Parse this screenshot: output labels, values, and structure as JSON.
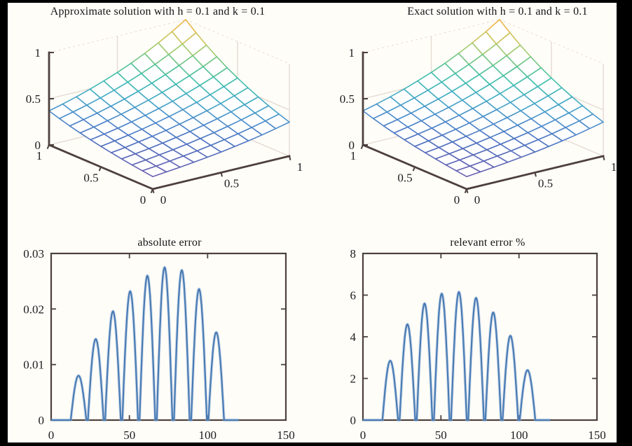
{
  "figure": {
    "background_color": "#fffdf8",
    "frame_color": "#4d403c",
    "box_light_color": "#e4dad2",
    "box_dash_color": "#eae0da",
    "text_color": "#1c1c1c",
    "accent_line_color": "#4a7cb5",
    "line_halo_color": "#9db9dc",
    "colormap": "parula",
    "colormap_stops": [
      "#6a5fb0",
      "#4f72c0",
      "#4e8ecc",
      "#46aac6",
      "#3fbfae",
      "#62c48e",
      "#a3ca6e",
      "#ddc055",
      "#f2ae3d"
    ]
  },
  "chart_data": [
    {
      "id": "approximate-solution-surface",
      "type": "surface",
      "title": "Approximate solution with h = 0.1 and k = 0.1",
      "x": [
        0,
        0.1,
        0.2,
        0.3,
        0.4,
        0.5,
        0.6,
        0.7,
        0.8,
        0.9,
        1
      ],
      "y": [
        0,
        0.1,
        0.2,
        0.3,
        0.4,
        0.5,
        0.6,
        0.7,
        0.8,
        0.9,
        1
      ],
      "z": [
        [
          0.135,
          0.15,
          0.165,
          0.183,
          0.202,
          0.223,
          0.247,
          0.273,
          0.301,
          0.333,
          0.368
        ],
        [
          0.15,
          0.165,
          0.183,
          0.202,
          0.223,
          0.247,
          0.273,
          0.301,
          0.333,
          0.368,
          0.407
        ],
        [
          0.165,
          0.183,
          0.202,
          0.223,
          0.247,
          0.273,
          0.301,
          0.333,
          0.368,
          0.407,
          0.449
        ],
        [
          0.183,
          0.202,
          0.223,
          0.247,
          0.273,
          0.301,
          0.333,
          0.368,
          0.407,
          0.449,
          0.497
        ],
        [
          0.202,
          0.223,
          0.247,
          0.273,
          0.301,
          0.333,
          0.368,
          0.407,
          0.449,
          0.497,
          0.549
        ],
        [
          0.223,
          0.247,
          0.273,
          0.301,
          0.333,
          0.368,
          0.407,
          0.449,
          0.497,
          0.549,
          0.607
        ],
        [
          0.247,
          0.273,
          0.301,
          0.333,
          0.368,
          0.407,
          0.449,
          0.497,
          0.549,
          0.607,
          0.67
        ],
        [
          0.273,
          0.301,
          0.333,
          0.368,
          0.407,
          0.449,
          0.497,
          0.549,
          0.607,
          0.67,
          0.741
        ],
        [
          0.301,
          0.333,
          0.368,
          0.407,
          0.449,
          0.497,
          0.549,
          0.607,
          0.67,
          0.741,
          0.819
        ],
        [
          0.333,
          0.368,
          0.407,
          0.449,
          0.497,
          0.549,
          0.607,
          0.67,
          0.741,
          0.819,
          0.905
        ],
        [
          0.368,
          0.407,
          0.449,
          0.497,
          0.549,
          0.607,
          0.67,
          0.741,
          0.819,
          0.905,
          1.0
        ]
      ],
      "xlim": [
        0,
        1
      ],
      "ylim": [
        0,
        1
      ],
      "zlim": [
        0,
        1
      ],
      "xticks": [
        0,
        0.5,
        1
      ],
      "yticks": [
        0,
        0.5,
        1
      ],
      "zticks": [
        0,
        0.5,
        1
      ],
      "xtick_labels": [
        "0",
        "0.5",
        "1"
      ],
      "ytick_labels": [
        "0",
        "0.5",
        "1"
      ],
      "ztick_labels": [
        "0",
        "0.5",
        "1"
      ]
    },
    {
      "id": "exact-solution-surface",
      "type": "surface",
      "title": "Exact solution with h = 0.1 and k = 0.1",
      "x": [
        0,
        0.1,
        0.2,
        0.3,
        0.4,
        0.5,
        0.6,
        0.7,
        0.8,
        0.9,
        1
      ],
      "y": [
        0,
        0.1,
        0.2,
        0.3,
        0.4,
        0.5,
        0.6,
        0.7,
        0.8,
        0.9,
        1
      ],
      "z": [
        [
          0.135,
          0.15,
          0.165,
          0.183,
          0.202,
          0.223,
          0.247,
          0.273,
          0.301,
          0.333,
          0.368
        ],
        [
          0.15,
          0.165,
          0.183,
          0.202,
          0.223,
          0.247,
          0.273,
          0.301,
          0.333,
          0.368,
          0.407
        ],
        [
          0.165,
          0.183,
          0.202,
          0.223,
          0.247,
          0.273,
          0.301,
          0.333,
          0.368,
          0.407,
          0.449
        ],
        [
          0.183,
          0.202,
          0.223,
          0.247,
          0.273,
          0.301,
          0.333,
          0.368,
          0.407,
          0.449,
          0.497
        ],
        [
          0.202,
          0.223,
          0.247,
          0.273,
          0.301,
          0.333,
          0.368,
          0.407,
          0.449,
          0.497,
          0.549
        ],
        [
          0.223,
          0.247,
          0.273,
          0.301,
          0.333,
          0.368,
          0.407,
          0.449,
          0.497,
          0.549,
          0.607
        ],
        [
          0.247,
          0.273,
          0.301,
          0.333,
          0.368,
          0.407,
          0.449,
          0.497,
          0.549,
          0.607,
          0.67
        ],
        [
          0.273,
          0.301,
          0.333,
          0.368,
          0.407,
          0.449,
          0.497,
          0.549,
          0.607,
          0.67,
          0.741
        ],
        [
          0.301,
          0.333,
          0.368,
          0.407,
          0.449,
          0.497,
          0.549,
          0.607,
          0.67,
          0.741,
          0.819
        ],
        [
          0.333,
          0.368,
          0.407,
          0.449,
          0.497,
          0.549,
          0.607,
          0.67,
          0.741,
          0.819,
          0.905
        ],
        [
          0.368,
          0.407,
          0.449,
          0.497,
          0.549,
          0.607,
          0.67,
          0.741,
          0.819,
          0.905,
          1.0
        ]
      ],
      "xlim": [
        0,
        1
      ],
      "ylim": [
        0,
        1
      ],
      "zlim": [
        0,
        1
      ],
      "xticks": [
        0,
        0.5,
        1
      ],
      "yticks": [
        0,
        0.5,
        1
      ],
      "zticks": [
        0,
        0.5,
        1
      ],
      "xtick_labels": [
        "0",
        "0.5",
        "1"
      ],
      "ytick_labels": [
        "0",
        "0.5",
        "1"
      ],
      "ztick_labels": [
        "0",
        "0.5",
        "1"
      ]
    },
    {
      "id": "absolute-error",
      "type": "line",
      "title": "absolute error",
      "xlim": [
        0,
        150
      ],
      "ylim": [
        0,
        0.03
      ],
      "xticks": [
        0,
        50,
        100,
        150
      ],
      "xtick_labels": [
        "0",
        "50",
        "100",
        "150"
      ],
      "yticks": [
        0,
        0.01,
        0.02,
        0.03
      ],
      "ytick_labels": [
        "0",
        "0.01",
        "0.02",
        "0.03"
      ],
      "data_x_start": 0,
      "data_x_end": 120,
      "baseline_value": 0,
      "arches": [
        {
          "x_start": 12.5,
          "x_peak": 17.5,
          "x_end": 22.5,
          "peak": 0.008
        },
        {
          "x_start": 23.5,
          "x_peak": 28.5,
          "x_end": 33.5,
          "peak": 0.0146
        },
        {
          "x_start": 34.5,
          "x_peak": 39.5,
          "x_end": 44.5,
          "peak": 0.0196
        },
        {
          "x_start": 45.5,
          "x_peak": 50.5,
          "x_end": 55.5,
          "peak": 0.0232
        },
        {
          "x_start": 56.5,
          "x_peak": 61.5,
          "x_end": 66.5,
          "peak": 0.026
        },
        {
          "x_start": 67.5,
          "x_peak": 72.5,
          "x_end": 77.5,
          "peak": 0.0275
        },
        {
          "x_start": 78.5,
          "x_peak": 83.5,
          "x_end": 88.5,
          "peak": 0.027
        },
        {
          "x_start": 89.5,
          "x_peak": 94.5,
          "x_end": 99.5,
          "peak": 0.0236
        },
        {
          "x_start": 100.5,
          "x_peak": 105.5,
          "x_end": 110.5,
          "peak": 0.0158
        }
      ]
    },
    {
      "id": "relevant-error-percent",
      "type": "line",
      "title": "relevant error %",
      "xlim": [
        0,
        150
      ],
      "ylim": [
        0,
        8
      ],
      "xticks": [
        0,
        50,
        100,
        150
      ],
      "xtick_labels": [
        "0",
        "50",
        "100",
        "150"
      ],
      "yticks": [
        0,
        2,
        4,
        6,
        8
      ],
      "ytick_labels": [
        "0",
        "2",
        "4",
        "6",
        "8"
      ],
      "data_x_start": 0,
      "data_x_end": 120,
      "baseline_value": 0,
      "arches": [
        {
          "x_start": 12.5,
          "x_peak": 17.5,
          "x_end": 22.5,
          "peak": 2.85
        },
        {
          "x_start": 23.5,
          "x_peak": 28.5,
          "x_end": 33.5,
          "peak": 4.6
        },
        {
          "x_start": 34.5,
          "x_peak": 39.5,
          "x_end": 44.5,
          "peak": 5.6
        },
        {
          "x_start": 45.5,
          "x_peak": 50.5,
          "x_end": 55.5,
          "peak": 6.07
        },
        {
          "x_start": 56.5,
          "x_peak": 61.5,
          "x_end": 66.5,
          "peak": 6.15
        },
        {
          "x_start": 67.5,
          "x_peak": 72.5,
          "x_end": 77.5,
          "peak": 5.87
        },
        {
          "x_start": 78.5,
          "x_peak": 83.5,
          "x_end": 88.5,
          "peak": 5.17
        },
        {
          "x_start": 89.5,
          "x_peak": 94.5,
          "x_end": 99.5,
          "peak": 4.05
        },
        {
          "x_start": 100.5,
          "x_peak": 105.5,
          "x_end": 110.5,
          "peak": 2.4
        }
      ]
    }
  ]
}
